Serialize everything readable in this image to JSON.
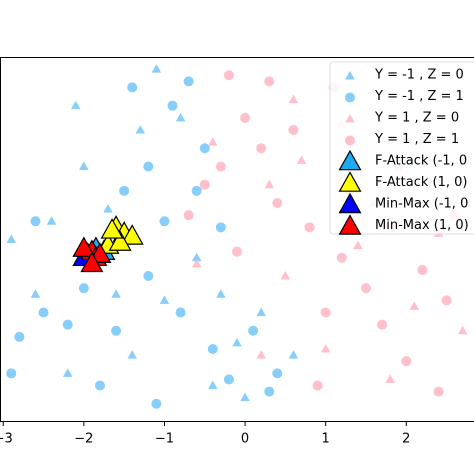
{
  "chart_data": {
    "type": "scatter",
    "xlim": [
      -3.04,
      2.84
    ],
    "ylim": [
      -3,
      3
    ],
    "xticks": [
      {
        "value": -3,
        "label": "−3"
      },
      {
        "value": -2,
        "label": "−2"
      },
      {
        "value": -1,
        "label": "−1"
      },
      0,
      1,
      2
    ],
    "legend": "upper right",
    "series": [
      {
        "name": "Y = -1 , Z = 0",
        "color": "#87cefa",
        "marker": "triangle",
        "size": "small",
        "x": [
          -2.4,
          -2.0,
          -1.7,
          -1.3,
          -2.6,
          -1.0,
          -0.6,
          -0.1,
          -1.6,
          -2.2,
          -0.4,
          0.2,
          0.6,
          -2.9,
          -1.4,
          -0.8,
          -2.1,
          -1.1,
          0.0,
          -0.3
        ],
        "y": [
          0.3,
          1.2,
          0.5,
          1.8,
          -0.9,
          -1.0,
          -0.3,
          -1.7,
          -0.9,
          -2.2,
          -2.4,
          -1.2,
          -1.9,
          0.0,
          -1.9,
          2.0,
          2.2,
          2.8,
          -2.6,
          -0.9
        ]
      },
      {
        "name": "Y = -1 , Z = 1",
        "color": "#87cefa",
        "marker": "circle",
        "size": "small",
        "x": [
          -2.5,
          -2.0,
          -1.6,
          -2.2,
          -1.2,
          -0.8,
          -0.4,
          -2.8,
          -1.0,
          -0.6,
          -1.2,
          -0.9,
          -1.4,
          -0.5,
          -2.6,
          -0.2,
          0.3,
          -1.8,
          -1.5,
          -0.7,
          0.1,
          -2.9,
          -1.1,
          0.4,
          -0.3
        ],
        "y": [
          -1.2,
          -0.8,
          -1.5,
          -1.4,
          -0.6,
          -1.2,
          -1.8,
          -1.6,
          0.3,
          0.8,
          1.2,
          2.2,
          2.5,
          1.5,
          0.3,
          -2.3,
          -2.5,
          -2.4,
          0.8,
          2.6,
          -1.5,
          -2.2,
          -2.7,
          -2.2,
          0.2
        ]
      },
      {
        "name": "Y = 1 , Z = 0",
        "color": "#ffc0cb",
        "marker": "triangle",
        "size": "small",
        "x": [
          -0.4,
          0.3,
          0.7,
          1.4,
          2.1,
          1.6,
          0.5,
          1.0,
          2.4,
          0.6,
          -0.6,
          1.8,
          0.2,
          2.7,
          1.2
        ],
        "y": [
          1.6,
          0.9,
          1.3,
          -0.1,
          -1.1,
          0.6,
          -0.6,
          -1.8,
          0.1,
          2.3,
          -0.4,
          -2.3,
          -1.9,
          -1.5,
          1.9
        ]
      },
      {
        "name": "Y = 1 , Z = 1",
        "color": "#ffc0cb",
        "marker": "circle",
        "size": "small",
        "x": [
          -0.3,
          0.2,
          -0.5,
          0.4,
          0.0,
          -0.7,
          0.6,
          1.2,
          1.5,
          1.8,
          2.2,
          1.0,
          1.7,
          2.5,
          0.8,
          2.0,
          1.3,
          2.6,
          0.3,
          -0.2,
          1.1,
          0.9,
          2.4,
          -0.1,
          1.9
        ],
        "y": [
          1.2,
          1.5,
          0.9,
          0.6,
          2.0,
          0.4,
          1.8,
          -0.3,
          -0.8,
          0.2,
          -0.5,
          -1.2,
          -1.4,
          -1.0,
          0.2,
          -2.0,
          0.8,
          0.4,
          2.6,
          2.7,
          2.5,
          -2.4,
          -2.5,
          -0.2,
          1.2
        ]
      },
      {
        "name": "F-Attack (-1, 0",
        "color": "#1eaaf0",
        "marker": "triangle",
        "size": "large",
        "x": [
          -1.75,
          -1.85
        ],
        "y": [
          -0.2,
          -0.15
        ]
      },
      {
        "name": "F-Attack (1, 0)",
        "color": "#ffff00",
        "marker": "triangle",
        "size": "large",
        "x": [
          -1.6,
          -1.5,
          -1.4,
          -1.7,
          -1.55,
          -1.65
        ],
        "y": [
          0.2,
          0.1,
          0.05,
          -0.1,
          -0.05,
          0.15
        ]
      },
      {
        "name": "Min-Max (-1, 0",
        "color": "#0000ff",
        "marker": "triangle",
        "size": "large",
        "x": [
          -1.95,
          -2.0
        ],
        "y": [
          -0.25,
          -0.3
        ]
      },
      {
        "name": "Min-Max (1, 0)",
        "color": "#ff0000",
        "marker": "triangle",
        "size": "large",
        "x": [
          -1.9,
          -1.85,
          -1.8,
          -2.0,
          -1.9
        ],
        "y": [
          -0.2,
          -0.3,
          -0.25,
          -0.15,
          -0.4
        ]
      }
    ]
  }
}
